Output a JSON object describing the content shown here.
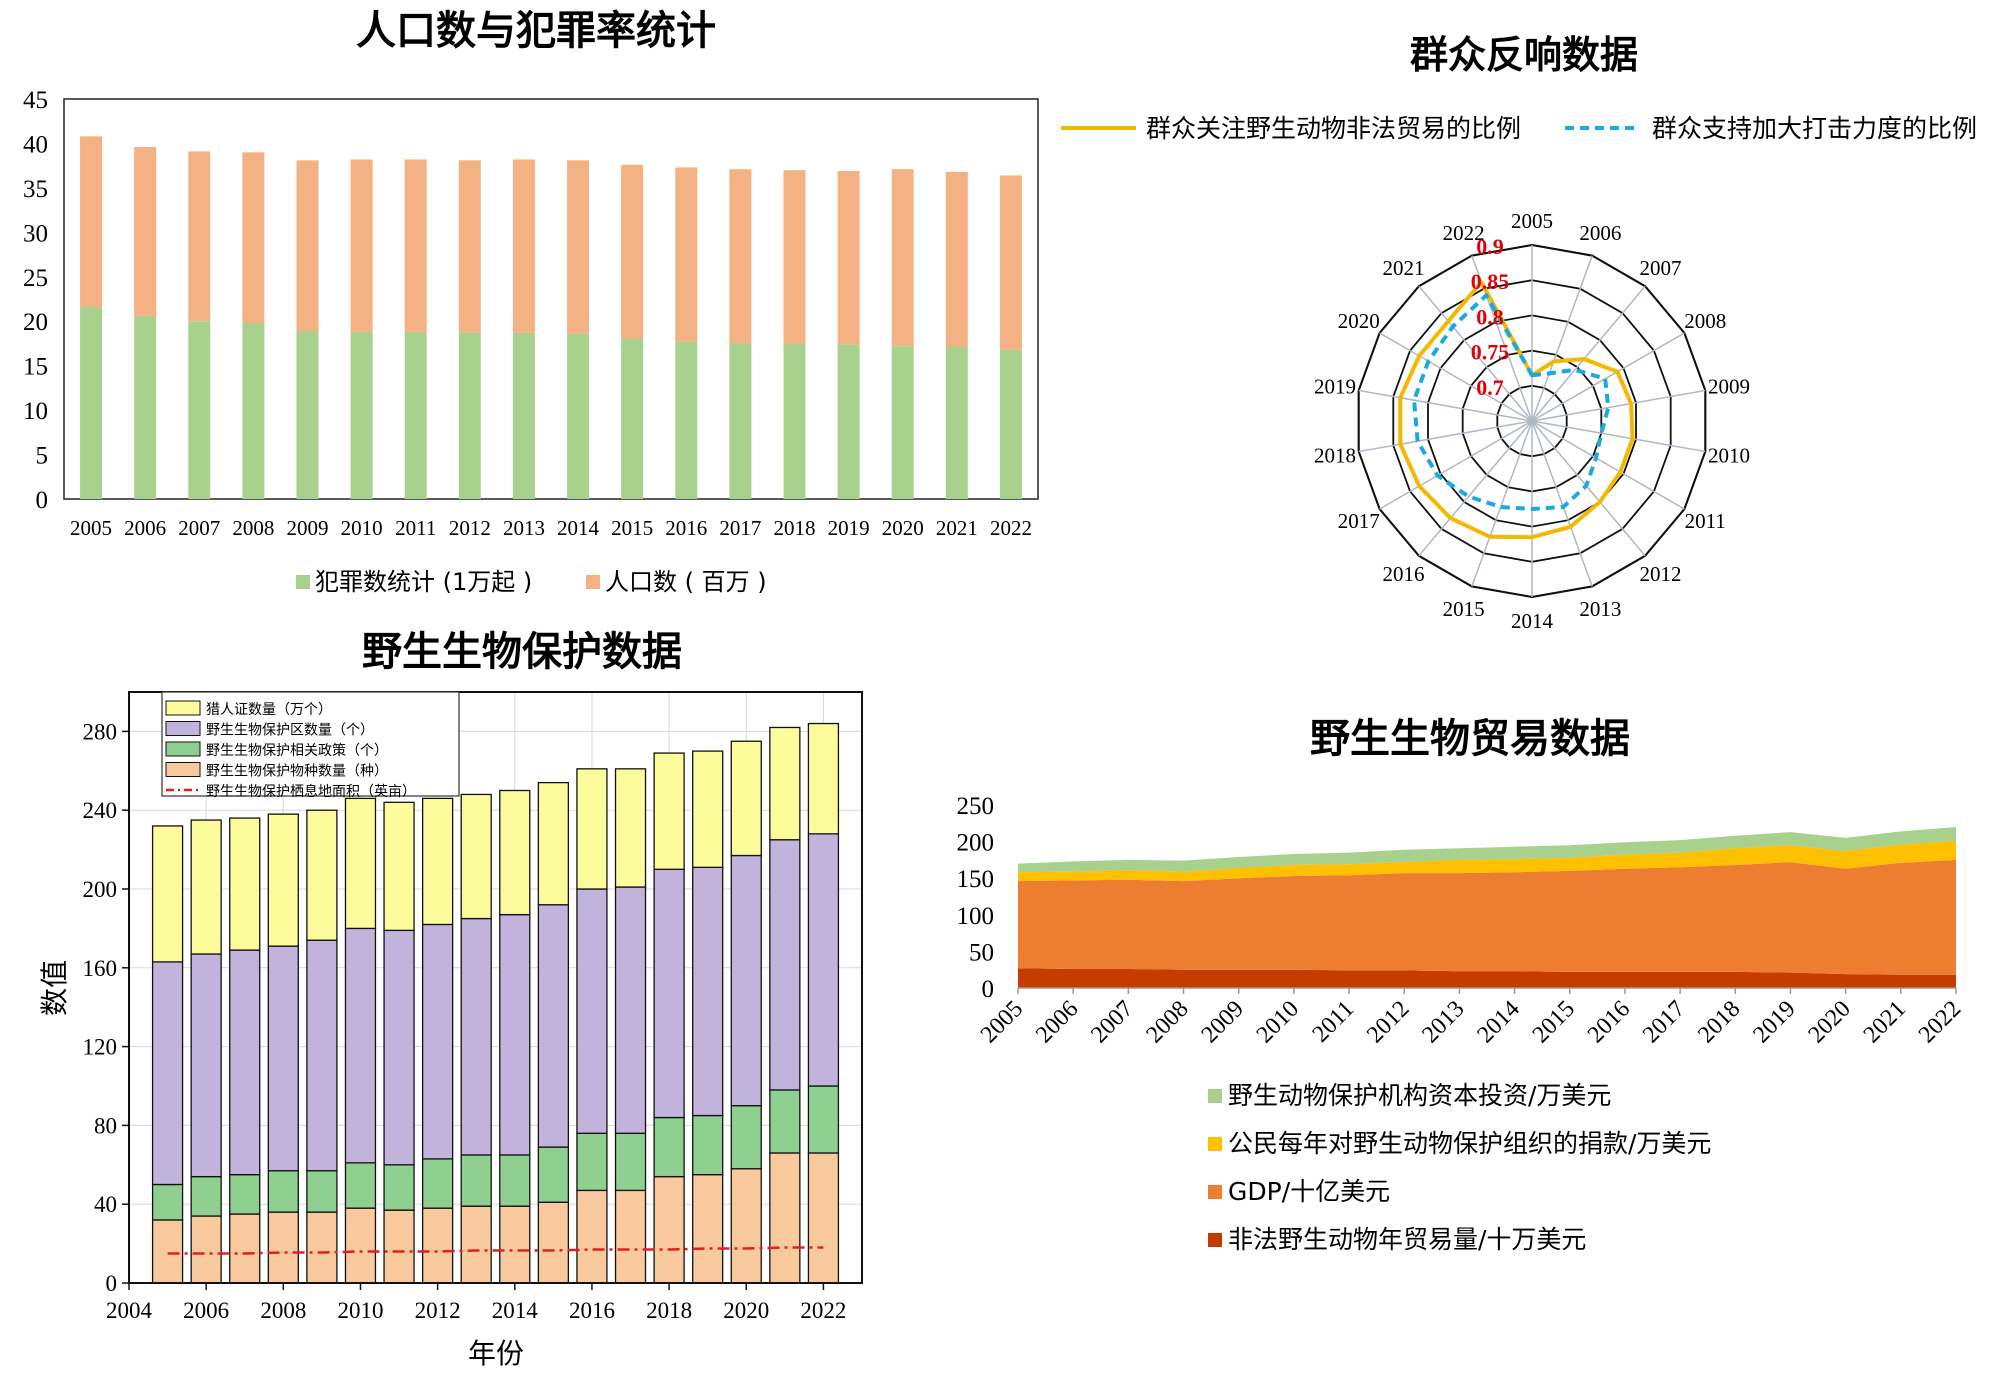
{
  "chart_data": [
    {
      "id": "population_crime",
      "type": "bar",
      "stacked": true,
      "title": "人口数与犯罪率统计",
      "categories": [
        "2005",
        "2006",
        "2007",
        "2008",
        "2009",
        "2010",
        "2011",
        "2012",
        "2013",
        "2014",
        "2015",
        "2016",
        "2017",
        "2018",
        "2019",
        "2020",
        "2021",
        "2022"
      ],
      "series": [
        {
          "name": "犯罪数统计 (1万起 )",
          "color": "#a9d18e",
          "values": [
            21.6,
            20.6,
            20.0,
            19.8,
            18.9,
            18.8,
            18.8,
            18.7,
            18.7,
            18.6,
            18.0,
            17.7,
            17.5,
            17.5,
            17.4,
            17.2,
            17.1,
            16.8
          ]
        },
        {
          "name": "人口数 ( 百万 )",
          "color": "#f4b183",
          "values": [
            19.2,
            19.0,
            19.1,
            19.2,
            19.2,
            19.4,
            19.4,
            19.4,
            19.5,
            19.5,
            19.6,
            19.6,
            19.6,
            19.5,
            19.5,
            19.9,
            19.7,
            19.6
          ]
        }
      ],
      "ylim": [
        0,
        45
      ],
      "yticks": [
        "0",
        "5",
        "10",
        "15",
        "20",
        "25",
        "30",
        "35",
        "40",
        "45"
      ],
      "legend_position": "bottom"
    },
    {
      "id": "public_response",
      "type": "radar",
      "title": "群众反响数据",
      "axes": [
        "2005",
        "2006",
        "2007",
        "2008",
        "2009",
        "2010",
        "2011",
        "2012",
        "2013",
        "2014",
        "2015",
        "2016",
        "2017",
        "2018",
        "2019",
        "2020",
        "2021",
        "2022"
      ],
      "rings": [
        "0.7",
        "0.75",
        "0.8",
        "0.85",
        "0.9"
      ],
      "range": [
        0.65,
        0.9
      ],
      "series": [
        {
          "name": "群众关注野生动物非法贸易的比例",
          "color": "#f5b800",
          "dash": "solid",
          "values": [
            0.715,
            0.74,
            0.765,
            0.79,
            0.793,
            0.795,
            0.795,
            0.8,
            0.81,
            0.815,
            0.825,
            0.83,
            0.835,
            0.84,
            0.84,
            0.835,
            0.835,
            0.86
          ]
        },
        {
          "name": "群众支持加大打击力度的比例",
          "color": "#1ca8e0",
          "dash": "dashed",
          "values": [
            0.715,
            0.722,
            0.745,
            0.77,
            0.76,
            0.75,
            0.755,
            0.77,
            0.78,
            0.775,
            0.78,
            0.79,
            0.805,
            0.815,
            0.82,
            0.82,
            0.825,
            0.84
          ]
        }
      ],
      "legend_position": "top"
    },
    {
      "id": "wildlife_protection",
      "type": "bar",
      "stacked": true,
      "title": "野生生物保护数据",
      "xlabel": "年份",
      "ylabel": "数值",
      "x": [
        2005,
        2006,
        2007,
        2008,
        2009,
        2010,
        2011,
        2012,
        2013,
        2014,
        2015,
        2016,
        2017,
        2018,
        2019,
        2020,
        2021,
        2022
      ],
      "xlim": [
        2004,
        2023
      ],
      "xticks": [
        "2004",
        "2006",
        "2008",
        "2010",
        "2012",
        "2014",
        "2016",
        "2018",
        "2020",
        "2022"
      ],
      "ylim": [
        0,
        300
      ],
      "yticks": [
        "0",
        "40",
        "80",
        "120",
        "160",
        "200",
        "240",
        "280"
      ],
      "series": [
        {
          "name": "野生生物保护物种数量（种）",
          "color": "#f9c99e",
          "values": [
            32,
            34,
            35,
            36,
            36,
            38,
            37,
            38,
            39,
            39,
            41,
            47,
            47,
            54,
            55,
            58,
            66,
            66
          ]
        },
        {
          "name": "野生生物保护相关政策（个）",
          "color": "#8fcf8f",
          "values": [
            18,
            20,
            20,
            21,
            21,
            23,
            23,
            25,
            26,
            26,
            28,
            29,
            29,
            30,
            30,
            32,
            32,
            34
          ]
        },
        {
          "name": "野生生物保护区数量（个）",
          "color": "#c2b3dd",
          "values": [
            113,
            113,
            114,
            114,
            117,
            119,
            119,
            119,
            120,
            122,
            123,
            124,
            125,
            126,
            126,
            127,
            127,
            128
          ]
        },
        {
          "name": "猎人证数量（万个）",
          "color": "#fbfb9b",
          "values": [
            69,
            68,
            67,
            67,
            66,
            66,
            65,
            64,
            63,
            63,
            62,
            61,
            60,
            59,
            59,
            58,
            57,
            56
          ]
        }
      ],
      "line": {
        "name": "野生生物保护栖息地面积（英亩）",
        "color": "#e02020",
        "values": [
          15,
          15,
          15,
          15.5,
          15.5,
          16,
          16,
          16,
          16.5,
          16.5,
          16.5,
          17,
          17,
          17,
          17.5,
          17.5,
          18,
          18
        ]
      },
      "legend_order": [
        "猎人证数量（万个）",
        "野生生物保护区数量（个）",
        "野生生物保护相关政策（个）",
        "野生生物保护物种数量（种）",
        "野生生物保护栖息地面积（英亩）"
      ],
      "legend_position": "top-left"
    },
    {
      "id": "wildlife_trade",
      "type": "area",
      "stacked": true,
      "title": "野生生物贸易数据",
      "categories": [
        "2005",
        "2006",
        "2007",
        "2008",
        "2009",
        "2010",
        "2011",
        "2012",
        "2013",
        "2014",
        "2015",
        "2016",
        "2017",
        "2018",
        "2019",
        "2020",
        "2021",
        "2022"
      ],
      "ylim": [
        0,
        250
      ],
      "yticks": [
        "0",
        "50",
        "100",
        "150",
        "200",
        "250"
      ],
      "series": [
        {
          "name": "非法野生动物年贸易量/十万美元",
          "color": "#c43c00",
          "values": [
            27,
            26,
            26,
            25,
            25,
            25,
            24,
            24,
            23,
            23,
            22,
            22,
            22,
            22,
            21,
            19,
            18,
            18
          ]
        },
        {
          "name": "GDP/十亿美元",
          "color": "#ed7d31",
          "values": [
            119,
            121,
            122,
            121,
            125,
            128,
            130,
            133,
            134,
            135,
            138,
            141,
            143,
            146,
            151,
            144,
            153,
            157
          ]
        },
        {
          "name": "公民每年对野生动物保护组织的捐款/万美元",
          "color": "#ffc000",
          "values": [
            12,
            12,
            13,
            13,
            14,
            15,
            15,
            15,
            18,
            18,
            18,
            19,
            20,
            23,
            23,
            24,
            25,
            26
          ]
        },
        {
          "name": "野生动物保护机构资本投资/万美元",
          "color": "#a9d18e",
          "values": [
            12,
            14,
            14,
            15,
            15,
            15,
            16,
            17,
            16,
            17,
            17,
            17,
            17,
            17,
            18,
            18,
            18,
            19
          ]
        }
      ],
      "legend_order": [
        "野生动物保护机构资本投资/万美元",
        "公民每年对野生动物保护组织的捐款/万美元",
        "GDP/十亿美元",
        "非法野生动物年贸易量/十万美元"
      ],
      "legend_position": "bottom"
    }
  ]
}
